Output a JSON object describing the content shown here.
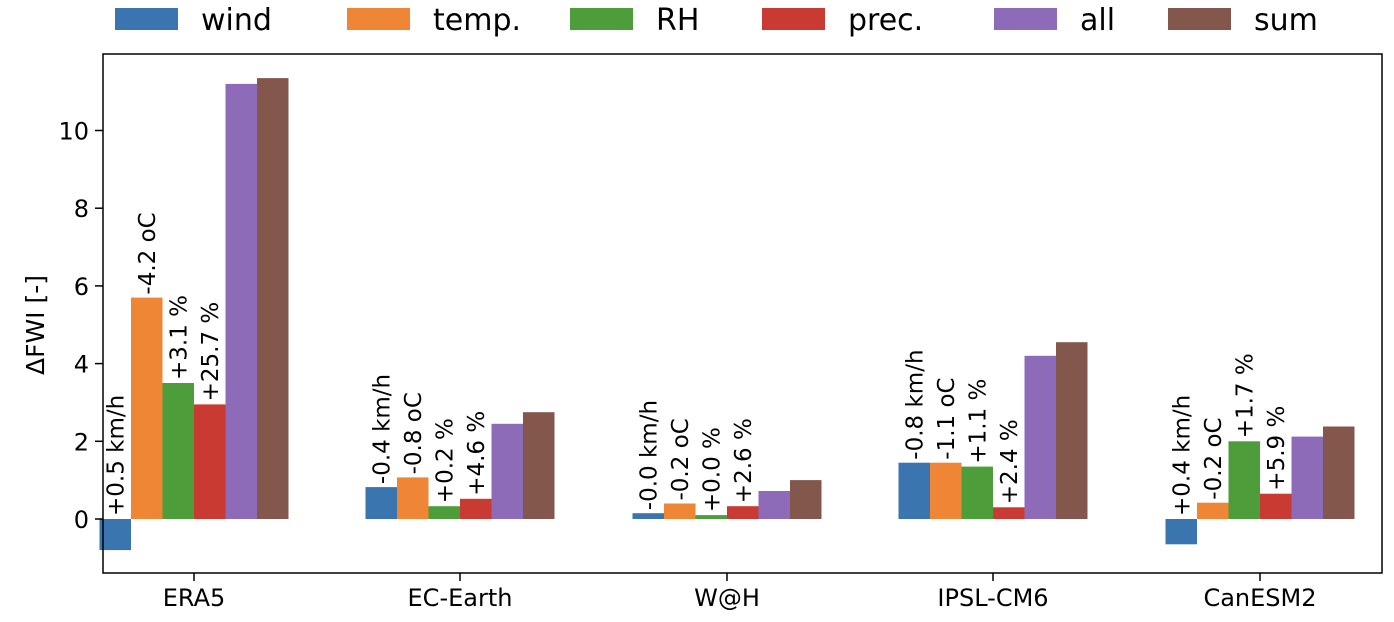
{
  "chart_data": {
    "type": "bar",
    "title": "",
    "xlabel": "",
    "ylabel": "ΔFWI [-]",
    "ylim": [
      -1.4,
      11.7
    ],
    "yticks": [
      "0",
      "2",
      "4",
      "6",
      "8",
      "10"
    ],
    "yticks_values": [
      0,
      2,
      4,
      6,
      8,
      10
    ],
    "grid": false,
    "legend_placement": "top, outside plot",
    "categories": [
      "ERA5",
      "EC-Earth",
      "W@H",
      "IPSL-CM6",
      "CanESM2"
    ],
    "series": [
      {
        "name": "wind",
        "color": "#3a75b0",
        "values": [
          -0.8,
          0.82,
          0.15,
          1.45,
          -0.65
        ],
        "annotations": [
          "+0.5 km/h",
          "-0.4 km/h",
          "-0.0 km/h",
          "-0.8 km/h",
          "+0.4 km/h"
        ]
      },
      {
        "name": "temp.",
        "color": "#ef8636",
        "values": [
          5.7,
          1.07,
          0.4,
          1.45,
          0.42
        ],
        "annotations": [
          "-4.2 oC",
          "-0.8 oC",
          "-0.2 oC",
          "-1.1 oC",
          "-0.2 oC"
        ]
      },
      {
        "name": "RH",
        "color": "#4d9e3a",
        "values": [
          3.5,
          0.33,
          0.1,
          1.35,
          2.0
        ],
        "annotations": [
          "+3.1 %",
          "+0.2 %",
          "+0.0 %",
          "+1.1 %",
          "+1.7 %"
        ]
      },
      {
        "name": "prec.",
        "color": "#c83a32",
        "values": [
          2.95,
          0.52,
          0.33,
          0.3,
          0.65
        ],
        "annotations": [
          "+25.7 %",
          "+4.6 %",
          "+2.6 %",
          "+2.4 %",
          "+5.9 %"
        ]
      },
      {
        "name": "all",
        "color": "#8e6bb8",
        "values": [
          11.2,
          2.45,
          0.72,
          4.2,
          2.12
        ],
        "annotations": []
      },
      {
        "name": "sum",
        "color": "#84574c",
        "values": [
          11.35,
          2.75,
          1.0,
          4.55,
          2.38
        ],
        "annotations": []
      }
    ]
  }
}
